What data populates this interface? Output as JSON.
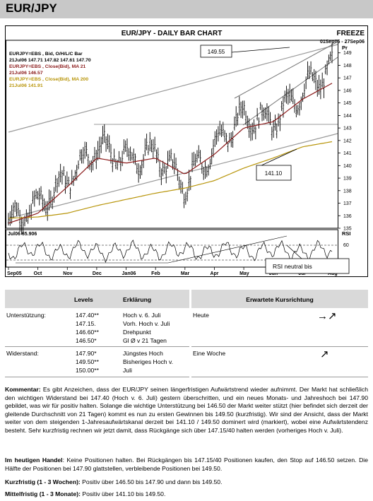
{
  "page_title": "EUR/JPY",
  "chart": {
    "title": "EUR/JPY - DAILY BAR CHART",
    "freeze_label": "FREEZE",
    "date_range": "01Sep05 - 27Sep06",
    "price_axis_label": "Pr",
    "legend": [
      {
        "text": "EURJPY=EBS , Bid, O/H/L/C Bar",
        "color": "#000000"
      },
      {
        "text": "21Jul06 147.71  147.82  147.61  147.70",
        "color": "#000000"
      },
      {
        "text": "EURJPY=EBS , Close(Bid), MA 21",
        "color": "#8b1a1a"
      },
      {
        "text": "21Jul06 146.57",
        "color": "#8b1a1a"
      },
      {
        "text": "EURJPY=EBS , Close(Bid), MA 200",
        "color": "#b8950a"
      },
      {
        "text": "21Jul06 141.91",
        "color": "#b8950a"
      }
    ],
    "callout_high": "149.55",
    "callout_low": "141.10",
    "rsi_legend": "Jul06  65.906",
    "rsi_label": "RSI",
    "rsi_level": "60",
    "rsi_callout": "RSI neutral bis",
    "price_ticks": [
      "149",
      "148",
      "147",
      "146",
      "145",
      "144",
      "143",
      "142",
      "141",
      "140",
      "139",
      "138",
      "137",
      "136",
      "135"
    ],
    "month_labels": [
      "Sep05",
      "Oct",
      "Nov",
      "Dec",
      "Jan06",
      "Feb",
      "Mar",
      "Apr",
      "May",
      "Jun",
      "Jul",
      "Aug"
    ],
    "colors": {
      "bars": "#000000",
      "ma21": "#8b1a1a",
      "ma200": "#b8950a",
      "channel": "#9a9a9a"
    }
  },
  "chart_data": {
    "type": "bar",
    "title": "EUR/JPY - DAILY BAR CHART",
    "x": [
      "Sep05",
      "Oct",
      "Nov",
      "Dec",
      "Jan06",
      "Feb",
      "Mar",
      "Apr",
      "May",
      "Jun",
      "Jul",
      "Aug"
    ],
    "ylim": [
      135,
      150
    ],
    "series": [
      {
        "name": "EURJPY=EBS , Bid, O/H/L/C Bar",
        "values": [
          135.6,
          136.8,
          139.0,
          141.5,
          140.5,
          141.0,
          138.5,
          141.5,
          144.0,
          143.5,
          146.0,
          147.7
        ]
      },
      {
        "name": "EURJPY=EBS , Close(Bid), MA 21",
        "values": [
          135.4,
          136.2,
          138.3,
          140.6,
          140.2,
          140.6,
          139.3,
          140.9,
          143.0,
          143.5,
          145.3,
          146.57
        ]
      },
      {
        "name": "EURJPY=EBS , Close(Bid), MA 200",
        "values": [
          135.8,
          135.9,
          136.2,
          136.8,
          137.3,
          137.8,
          138.2,
          138.8,
          139.8,
          140.6,
          141.5,
          141.91
        ]
      }
    ],
    "annotations": [
      "149.55",
      "141.10",
      "RSI neutral bis"
    ],
    "grid": false,
    "legend": "top-left"
  },
  "levels_table": {
    "col_levels": "Levels",
    "col_explanation": "Erklärung",
    "rows": [
      {
        "label": "Unterstützung:",
        "levels": [
          "147.40**",
          "147.15.",
          "146.60**",
          "146.50*"
        ],
        "explanations": [
          "Hoch v. 6. Juli",
          "Vorh. Hoch v. Juli",
          "Drehpunkt",
          "Gl Ø v 21 Tagen"
        ]
      },
      {
        "label": "Widerstand:",
        "levels": [
          "147.90*",
          "149.50**",
          "150.00**"
        ],
        "explanations": [
          "Jüngstes Hoch",
          "Bisheriges Hoch v.",
          "Juli"
        ]
      }
    ]
  },
  "expected_table": {
    "header": "Erwartete Kursrichtung",
    "rows": [
      {
        "label": "Heute",
        "arrow": "→↗"
      },
      {
        "label": "Eine Woche",
        "arrow": "↗"
      }
    ]
  },
  "commentary": {
    "label": "Kommentar:",
    "text": " Es gibt Anzeichen, dass der EUR/JPY seinen längerfristigen Aufwärtstrend wieder aufnimmt. Der Markt hat schließlich den wichtigen Widerstand bei 147.40 (Hoch v. 6. Juli) gestern überschritten, und ein neues Monats- und Jahreshoch bei 147.90 gebildet, was wir für positiv halten. Solange die wichtige Unterstützung bei 146.50 der Markt weiter stützt (hier befindet sich derzeit der gleitende Durchschnitt von 21 Tagen) kommt es nun zu ersten Gewinnen bis 149.50 (kurzfristig). Wir sind der Ansicht, dass der Markt weiter von dem steigenden 1-Jahresaufwärtskanal derzeit bei 141.10 / 149.50 dominert wird (markiert), wobei eine Aufwärtstendenz besteht. Sehr kurzfristig rechnen wir jetzt damit, dass Rückgänge sich über 147.15/40 halten werden (vorheriges Hoch v. Juli)."
  },
  "trading": {
    "label": "Im heutigen Handel",
    "text": ": Keine Positionen halten. Bei Rückgängen bis 147.15/40 Positionen kaufen, den Stop auf 146.50 setzen. Die Hälfte der Positionen bei 147.90 glattstellen, verbleibende Positionen bei 149.50."
  },
  "short_term": {
    "label": "Kurzfristig (1 - 3 Wochen):",
    "text": " Positiv über 146.50 bis 147.90 und dann bis 149.50."
  },
  "medium_term": {
    "label": "Mittelfristig (1 - 3 Monate):",
    "text": " Positiv über 141.10 bis 149.50."
  }
}
